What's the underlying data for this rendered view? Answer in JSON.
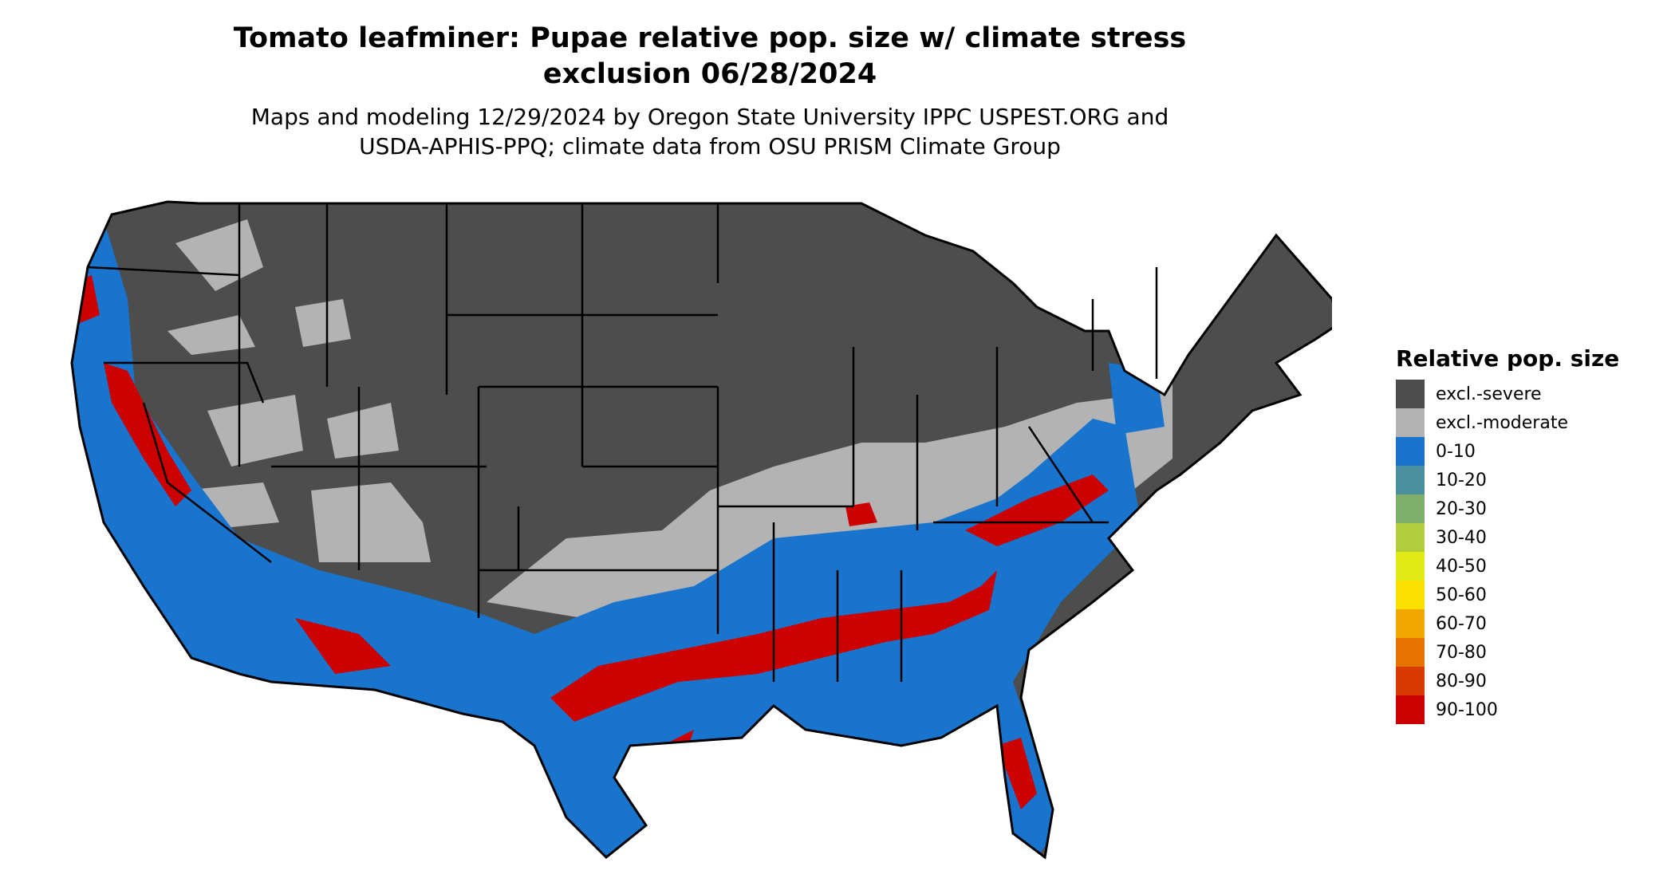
{
  "title": {
    "line1": "Tomato leafminer: Pupae relative pop. size w/ climate stress",
    "line2": "exclusion 06/28/2024"
  },
  "subtitle": {
    "line1": "Maps and modeling 12/29/2024 by Oregon State University IPPC USPEST.ORG and",
    "line2": "USDA-APHIS-PPQ; climate data from OSU PRISM Climate Group"
  },
  "legend": {
    "title": "Relative pop. size",
    "items": [
      {
        "label": "excl.-severe",
        "color": "#4d4d4d"
      },
      {
        "label": "excl.-moderate",
        "color": "#b3b3b3"
      },
      {
        "label": "0-10",
        "color": "#1874cd"
      },
      {
        "label": "10-20",
        "color": "#4a8f9c"
      },
      {
        "label": "20-30",
        "color": "#7fae6b"
      },
      {
        "label": "30-40",
        "color": "#b2cc3c"
      },
      {
        "label": "40-50",
        "color": "#e2ea16"
      },
      {
        "label": "50-60",
        "color": "#f9e000"
      },
      {
        "label": "60-70",
        "color": "#f0a800"
      },
      {
        "label": "70-80",
        "color": "#e67300"
      },
      {
        "label": "80-90",
        "color": "#d93a00"
      },
      {
        "label": "90-100",
        "color": "#cd0000"
      }
    ]
  }
}
